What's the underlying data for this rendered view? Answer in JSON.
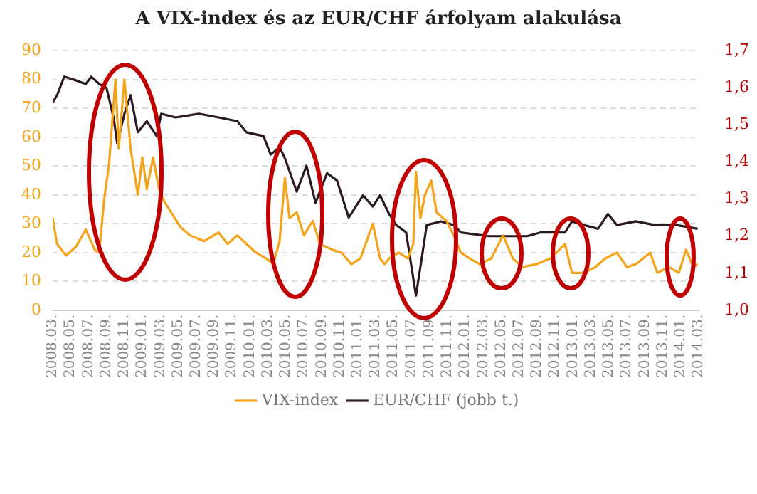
{
  "chart_data": {
    "type": "line",
    "title": "A VIX-index és az EUR/CHF árfolyam alakulása",
    "xlim": [
      "2008-03",
      "2014-03"
    ],
    "xticks": [
      {
        "value": "2008-03",
        "label": "2008.03."
      },
      {
        "value": "2008-05",
        "label": "2008.05."
      },
      {
        "value": "2008-07",
        "label": "2008.07."
      },
      {
        "value": "2008-09",
        "label": "2008.09."
      },
      {
        "value": "2008-11",
        "label": "2008.11."
      },
      {
        "value": "2009-01",
        "label": "2009.01."
      },
      {
        "value": "2009-03",
        "label": "2009.03."
      },
      {
        "value": "2009-05",
        "label": "2009.05."
      },
      {
        "value": "2009-07",
        "label": "2009.07."
      },
      {
        "value": "2009-09",
        "label": "2009.09."
      },
      {
        "value": "2009-11",
        "label": "2009.11."
      },
      {
        "value": "2010-01",
        "label": "2010.01."
      },
      {
        "value": "2010-03",
        "label": "2010.03."
      },
      {
        "value": "2010-05",
        "label": "2010.05."
      },
      {
        "value": "2010-07",
        "label": "2010.07."
      },
      {
        "value": "2010-09",
        "label": "2010.09."
      },
      {
        "value": "2010-11",
        "label": "2010.11."
      },
      {
        "value": "2011-01",
        "label": "2011.01."
      },
      {
        "value": "2011-03",
        "label": "2011.03."
      },
      {
        "value": "2011-05",
        "label": "2011.05."
      },
      {
        "value": "2011-07",
        "label": "2011.07."
      },
      {
        "value": "2011-09",
        "label": "2011.09."
      },
      {
        "value": "2011-11",
        "label": "2011.11."
      },
      {
        "value": "2012-01",
        "label": "2012.01."
      },
      {
        "value": "2012-03",
        "label": "2012.03."
      },
      {
        "value": "2012-05",
        "label": "2012.05."
      },
      {
        "value": "2012-07",
        "label": "2012.07."
      },
      {
        "value": "2012-09",
        "label": "2012.09."
      },
      {
        "value": "2012-11",
        "label": "2012.11."
      },
      {
        "value": "2013-01",
        "label": "2013.01."
      },
      {
        "value": "2013-03",
        "label": "2013.03."
      },
      {
        "value": "2013-05",
        "label": "2013.05."
      },
      {
        "value": "2013-07",
        "label": "2013.07."
      },
      {
        "value": "2013-09",
        "label": "2013.09."
      },
      {
        "value": "2013-11",
        "label": "2013.11."
      },
      {
        "value": "2014-01",
        "label": "2014.01."
      },
      {
        "value": "2014-03",
        "label": "2014.03."
      }
    ],
    "ylim": [
      0,
      90
    ],
    "yticks": [
      0,
      10,
      20,
      30,
      40,
      50,
      60,
      70,
      80,
      90
    ],
    "y2lim": [
      1.0,
      1.7
    ],
    "y2ticks": [
      {
        "value": 1.0,
        "label": "1,0"
      },
      {
        "value": 1.1,
        "label": "1,1"
      },
      {
        "value": 1.2,
        "label": "1,2"
      },
      {
        "value": 1.3,
        "label": "1,3"
      },
      {
        "value": 1.4,
        "label": "1,4"
      },
      {
        "value": 1.5,
        "label": "1,5"
      },
      {
        "value": 1.6,
        "label": "1,6"
      },
      {
        "value": 1.7,
        "label": "1,7"
      }
    ],
    "grid": "y",
    "legend": "bottom",
    "marker": "none",
    "series": [
      {
        "name": "VIX-index",
        "color": "#f5a31a",
        "x": [
          "2008-03-01",
          "2008-03-16",
          "2008-04-16",
          "2008-05-19",
          "2008-06-22",
          "2008-07-22",
          "2008-08-07",
          "2008-08-22",
          "2008-09-10",
          "2008-10-01",
          "2008-10-12",
          "2008-11-01",
          "2008-11-22",
          "2008-12-16",
          "2009-01-01",
          "2009-01-16",
          "2009-02-07",
          "2009-02-27",
          "2009-03-13",
          "2009-04-07",
          "2009-05-07",
          "2009-06-10",
          "2009-07-28",
          "2009-09-16",
          "2009-10-16",
          "2009-11-19",
          "2009-12-19",
          "2010-01-22",
          "2010-02-25",
          "2010-03-19",
          "2010-04-10",
          "2010-04-28",
          "2010-05-13",
          "2010-06-07",
          "2010-07-01",
          "2010-08-01",
          "2010-08-25",
          "2010-10-07",
          "2010-11-07",
          "2010-12-10",
          "2011-01-10",
          "2011-02-22",
          "2011-03-16",
          "2011-04-01",
          "2011-04-16",
          "2011-05-19",
          "2011-06-19",
          "2011-07-07",
          "2011-07-16",
          "2011-08-01",
          "2011-08-16",
          "2011-09-07",
          "2011-09-25",
          "2011-10-28",
          "2011-11-22",
          "2011-12-16",
          "2012-01-16",
          "2012-02-19",
          "2012-03-28",
          "2012-05-07",
          "2012-06-10",
          "2012-07-10",
          "2012-08-28",
          "2012-10-16",
          "2012-12-04",
          "2012-12-28",
          "2013-02-07",
          "2013-03-16",
          "2013-04-19",
          "2013-05-28",
          "2013-07-01",
          "2013-08-01",
          "2013-09-19",
          "2013-10-13",
          "2013-11-22",
          "2013-12-25",
          "2014-01-19",
          "2014-02-13",
          "2014-02-28"
        ],
        "values": [
          32,
          23,
          19,
          22,
          28,
          21,
          20,
          37,
          51,
          80,
          56,
          80,
          56,
          40,
          53,
          42,
          53,
          42,
          38,
          34,
          29,
          26,
          24,
          27,
          23,
          26,
          23,
          20,
          18,
          16,
          24,
          46,
          32,
          34,
          26,
          31,
          23,
          21,
          20,
          16,
          18,
          30,
          18,
          16,
          18,
          20,
          18,
          23,
          48,
          32,
          40,
          45,
          34,
          31,
          26,
          20,
          18,
          16,
          18,
          26,
          18,
          15,
          16,
          18,
          23,
          13,
          13,
          15,
          18,
          20,
          15,
          16,
          20,
          13,
          15,
          13,
          21,
          15,
          16
        ]
      },
      {
        "name": "EUR/CHF (jobb t.)",
        "color": "#2b1a20",
        "axis": "y2",
        "x": [
          "2008-03-01",
          "2008-03-16",
          "2008-04-10",
          "2008-05-19",
          "2008-06-22",
          "2008-07-10",
          "2008-08-07",
          "2008-09-01",
          "2008-09-25",
          "2008-10-07",
          "2008-11-01",
          "2008-11-22",
          "2008-12-16",
          "2009-01-16",
          "2009-02-19",
          "2009-03-04",
          "2009-04-22",
          "2009-07-10",
          "2009-09-16",
          "2009-11-19",
          "2009-12-19",
          "2010-02-16",
          "2010-03-10",
          "2010-04-10",
          "2010-04-28",
          "2010-06-07",
          "2010-07-10",
          "2010-08-10",
          "2010-09-19",
          "2010-10-22",
          "2010-12-01",
          "2011-01-19",
          "2011-02-22",
          "2011-03-16",
          "2011-04-16",
          "2011-05-10",
          "2011-06-13",
          "2011-07-16",
          "2011-08-07",
          "2011-08-22",
          "2011-10-10",
          "2011-11-22",
          "2011-12-16",
          "2012-03-19",
          "2012-07-28",
          "2012-09-13",
          "2012-12-04",
          "2012-12-28",
          "2013-02-07",
          "2013-03-25",
          "2013-04-28",
          "2013-05-28",
          "2013-08-01",
          "2013-10-04",
          "2013-12-16",
          "2014-02-28"
        ],
        "values": [
          1.56,
          1.58,
          1.63,
          1.62,
          1.61,
          1.63,
          1.61,
          1.6,
          1.52,
          1.45,
          1.53,
          1.58,
          1.48,
          1.51,
          1.47,
          1.53,
          1.52,
          1.53,
          1.52,
          1.51,
          1.48,
          1.47,
          1.42,
          1.44,
          1.41,
          1.32,
          1.39,
          1.29,
          1.37,
          1.35,
          1.25,
          1.31,
          1.28,
          1.31,
          1.26,
          1.23,
          1.21,
          1.04,
          1.15,
          1.23,
          1.24,
          1.23,
          1.21,
          1.2,
          1.2,
          1.21,
          1.21,
          1.24,
          1.23,
          1.22,
          1.26,
          1.23,
          1.24,
          1.23,
          1.23,
          1.22
        ]
      }
    ]
  }
}
